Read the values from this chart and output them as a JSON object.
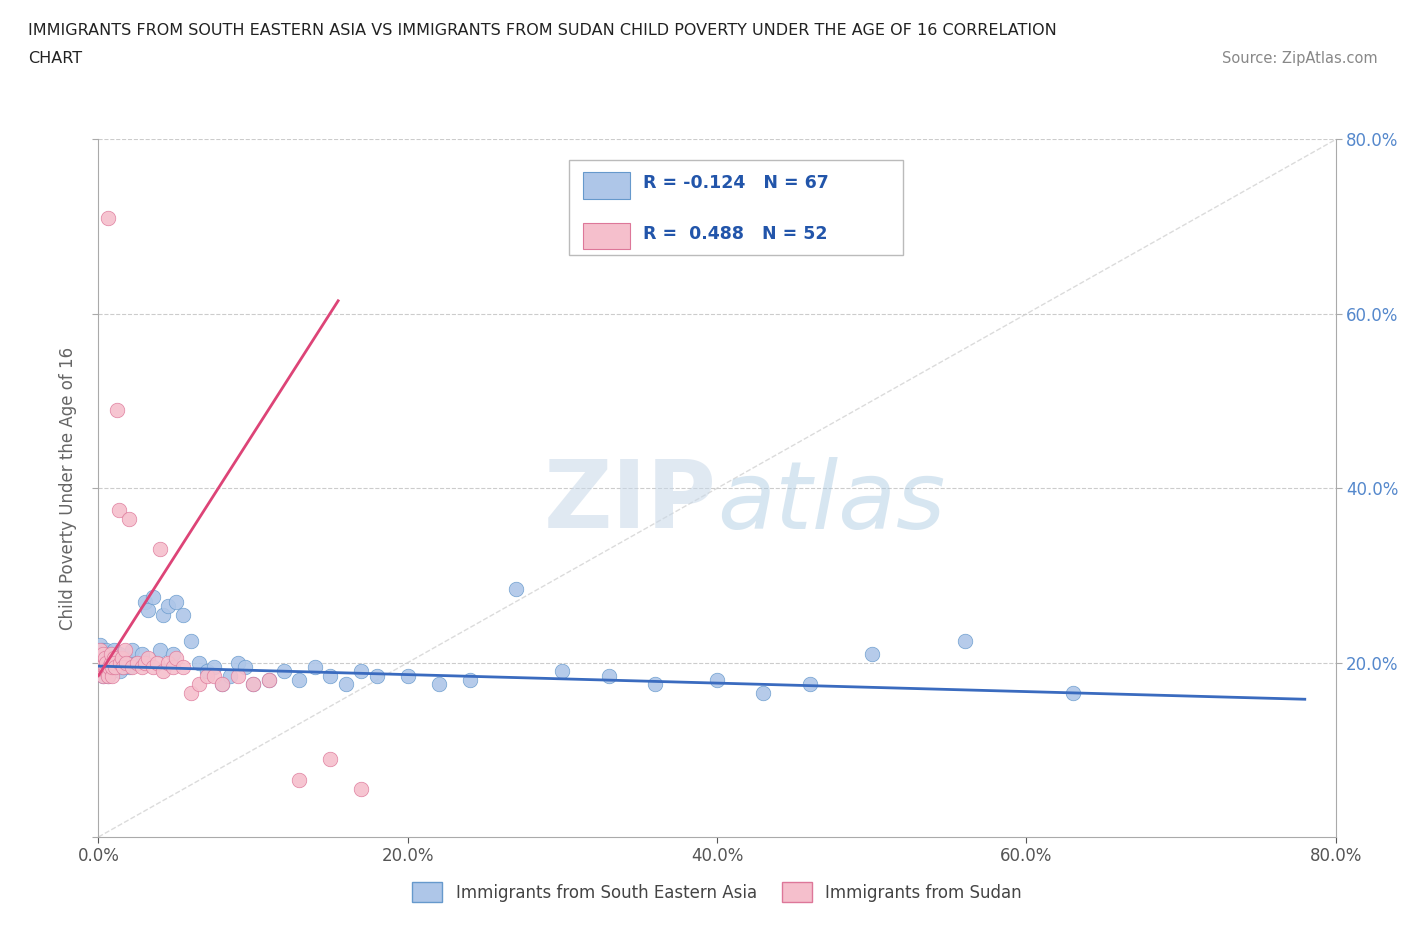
{
  "title_line1": "IMMIGRANTS FROM SOUTH EASTERN ASIA VS IMMIGRANTS FROM SUDAN CHILD POVERTY UNDER THE AGE OF 16 CORRELATION",
  "title_line2": "CHART",
  "source": "Source: ZipAtlas.com",
  "ylabel": "Child Poverty Under the Age of 16",
  "x_min": 0.0,
  "x_max": 0.8,
  "y_min": 0.0,
  "y_max": 0.8,
  "x_tick_labels": [
    "0.0%",
    "20.0%",
    "40.0%",
    "60.0%",
    "80.0%"
  ],
  "y_tick_labels_right": [
    "20.0%",
    "40.0%",
    "60.0%",
    "80.0%"
  ],
  "series1_color": "#aec6e8",
  "series1_edge": "#6699cc",
  "series2_color": "#f5bfcc",
  "series2_edge": "#dd7799",
  "trend1_color": "#3a6bbf",
  "trend2_color": "#dd4477",
  "ref_line_color": "#cccccc",
  "legend1_label": "Immigrants from South Eastern Asia",
  "legend2_label": "Immigrants from Sudan",
  "watermark_zip": "ZIP",
  "watermark_atlas": "atlas",
  "title_fontsize": 12,
  "source_color": "#888888",
  "right_tick_color": "#5588cc",
  "series1_x": [
    0.001,
    0.002,
    0.002,
    0.003,
    0.003,
    0.004,
    0.004,
    0.005,
    0.005,
    0.006,
    0.006,
    0.007,
    0.008,
    0.008,
    0.009,
    0.01,
    0.01,
    0.011,
    0.012,
    0.013,
    0.014,
    0.015,
    0.016,
    0.018,
    0.02,
    0.022,
    0.025,
    0.028,
    0.03,
    0.032,
    0.035,
    0.04,
    0.042,
    0.045,
    0.048,
    0.05,
    0.055,
    0.06,
    0.065,
    0.07,
    0.075,
    0.08,
    0.085,
    0.09,
    0.095,
    0.1,
    0.11,
    0.12,
    0.13,
    0.14,
    0.15,
    0.16,
    0.17,
    0.18,
    0.2,
    0.22,
    0.24,
    0.27,
    0.3,
    0.33,
    0.36,
    0.4,
    0.43,
    0.46,
    0.5,
    0.56,
    0.63
  ],
  "series1_y": [
    0.22,
    0.2,
    0.215,
    0.185,
    0.205,
    0.19,
    0.21,
    0.195,
    0.215,
    0.2,
    0.185,
    0.21,
    0.195,
    0.205,
    0.19,
    0.215,
    0.2,
    0.195,
    0.205,
    0.21,
    0.19,
    0.2,
    0.195,
    0.205,
    0.195,
    0.215,
    0.2,
    0.21,
    0.27,
    0.26,
    0.275,
    0.215,
    0.255,
    0.265,
    0.21,
    0.27,
    0.255,
    0.225,
    0.2,
    0.19,
    0.195,
    0.175,
    0.185,
    0.2,
    0.195,
    0.175,
    0.18,
    0.19,
    0.18,
    0.195,
    0.185,
    0.175,
    0.19,
    0.185,
    0.185,
    0.175,
    0.18,
    0.285,
    0.19,
    0.185,
    0.175,
    0.18,
    0.165,
    0.175,
    0.21,
    0.225,
    0.165
  ],
  "series2_x": [
    0.001,
    0.001,
    0.002,
    0.002,
    0.003,
    0.003,
    0.004,
    0.004,
    0.005,
    0.005,
    0.006,
    0.006,
    0.007,
    0.008,
    0.008,
    0.009,
    0.009,
    0.01,
    0.01,
    0.011,
    0.012,
    0.013,
    0.014,
    0.015,
    0.016,
    0.017,
    0.018,
    0.02,
    0.022,
    0.025,
    0.028,
    0.03,
    0.032,
    0.035,
    0.038,
    0.04,
    0.042,
    0.045,
    0.048,
    0.05,
    0.055,
    0.06,
    0.065,
    0.07,
    0.075,
    0.08,
    0.09,
    0.1,
    0.11,
    0.13,
    0.15,
    0.17
  ],
  "series2_y": [
    0.195,
    0.215,
    0.2,
    0.195,
    0.21,
    0.185,
    0.195,
    0.205,
    0.19,
    0.2,
    0.185,
    0.71,
    0.195,
    0.2,
    0.21,
    0.185,
    0.195,
    0.205,
    0.2,
    0.195,
    0.49,
    0.375,
    0.2,
    0.205,
    0.195,
    0.215,
    0.2,
    0.365,
    0.195,
    0.2,
    0.195,
    0.2,
    0.205,
    0.195,
    0.2,
    0.33,
    0.19,
    0.2,
    0.195,
    0.205,
    0.195,
    0.165,
    0.175,
    0.185,
    0.185,
    0.175,
    0.185,
    0.175,
    0.18,
    0.065,
    0.09,
    0.055
  ]
}
